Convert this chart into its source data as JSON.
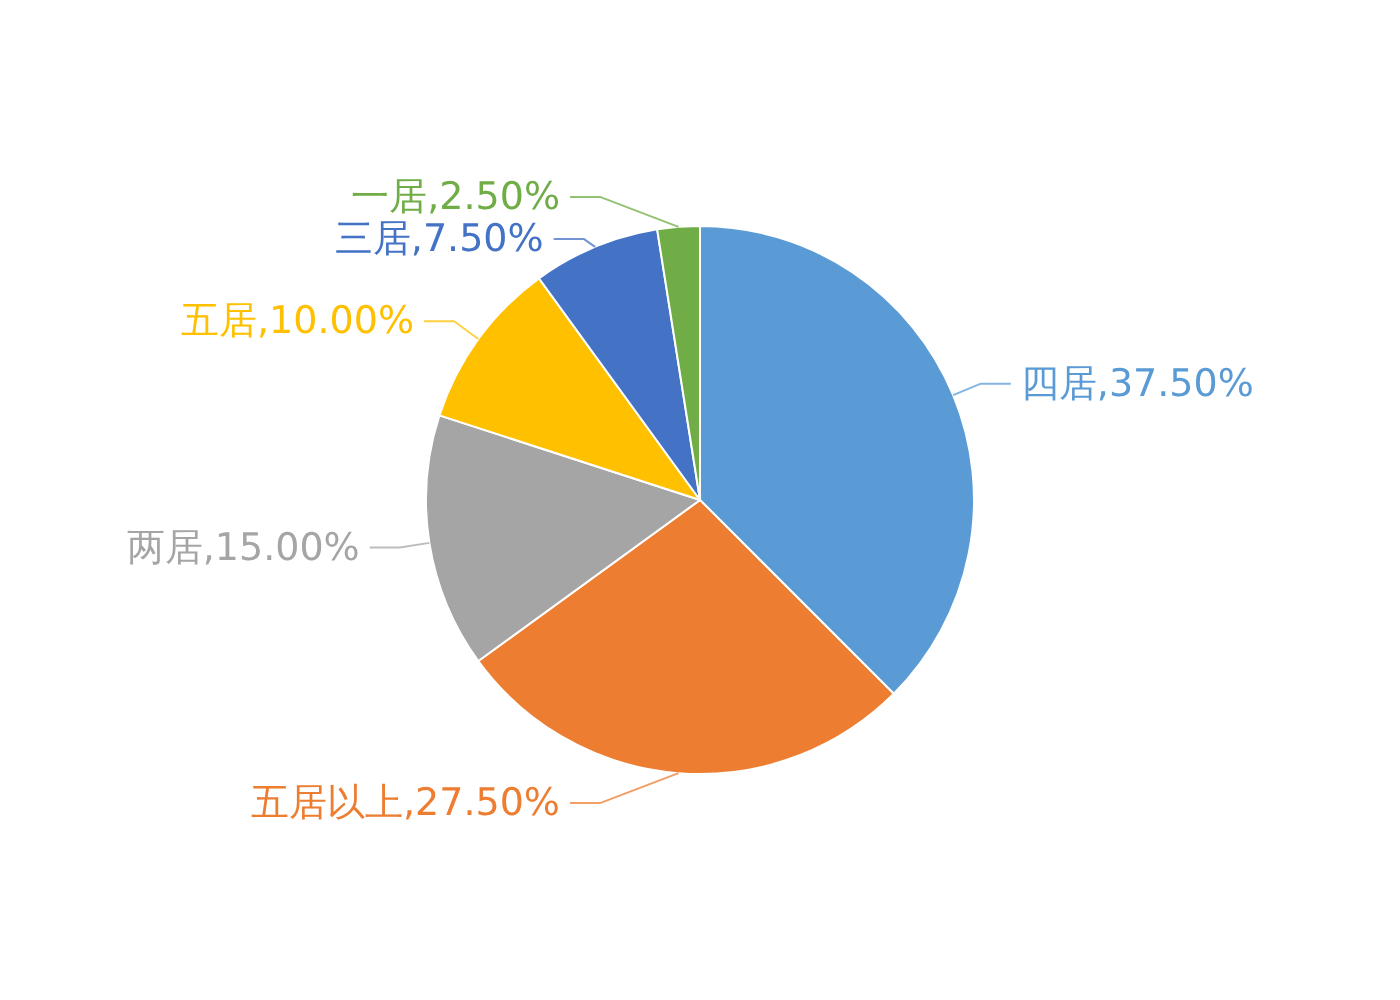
{
  "chart_data": {
    "type": "pie",
    "categories": [
      "四居",
      "五居以上",
      "两居",
      "五居",
      "三居",
      "一居"
    ],
    "values": [
      37.5,
      27.5,
      15,
      10,
      7.5,
      2.5
    ],
    "colors": [
      "#5b9bd5",
      "#ed7d31",
      "#a5a5a5",
      "#ffc000",
      "#4472c4",
      "#70ad47"
    ],
    "value_labels": [
      "37.50%",
      "27.50%",
      "15.00%",
      "10.00%",
      "7.50%",
      "2.50%"
    ]
  }
}
